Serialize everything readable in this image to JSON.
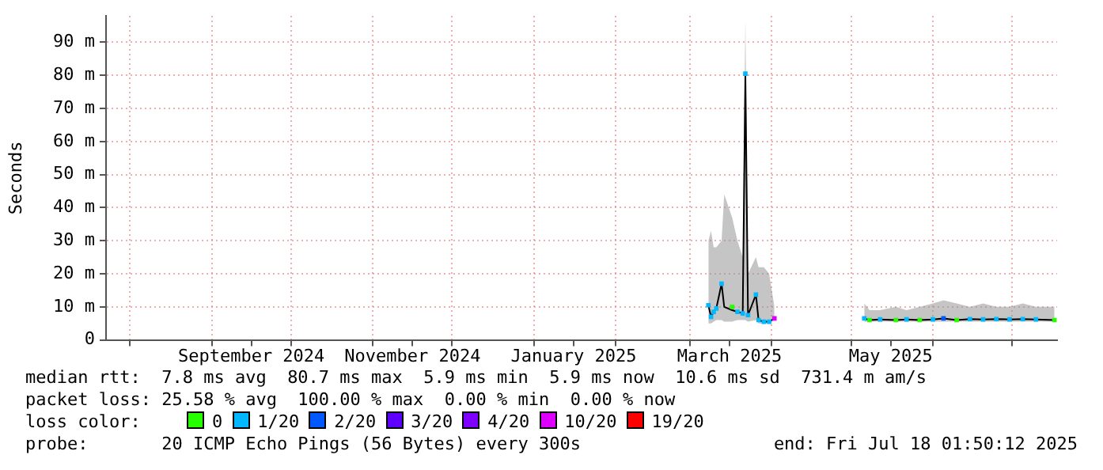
{
  "chart_data": {
    "type": "line",
    "ylabel": "Seconds",
    "legend_title": "loss color:",
    "legend": "bottom",
    "grid": true,
    "xlim": [
      "2024-07-23",
      "2025-07-18"
    ],
    "xticks": [
      {
        "value": "2024-08-01",
        "label": null
      },
      {
        "value": "2024-09-01",
        "label": null
      },
      {
        "value": "2024-09-16",
        "label": "September 2024"
      },
      {
        "value": "2024-10-01",
        "label": null
      },
      {
        "value": "2024-11-01",
        "label": null
      },
      {
        "value": "2024-11-16",
        "label": "November 2024"
      },
      {
        "value": "2024-12-01",
        "label": null
      },
      {
        "value": "2025-01-01",
        "label": null
      },
      {
        "value": "2025-01-16",
        "label": "January 2025"
      },
      {
        "value": "2025-02-01",
        "label": null
      },
      {
        "value": "2025-03-01",
        "label": null
      },
      {
        "value": "2025-03-16",
        "label": "March 2025"
      },
      {
        "value": "2025-04-01",
        "label": null
      },
      {
        "value": "2025-05-01",
        "label": null
      },
      {
        "value": "2025-05-16",
        "label": "May 2025"
      },
      {
        "value": "2025-06-01",
        "label": null
      },
      {
        "value": "2025-07-01",
        "label": null
      }
    ],
    "ylim": [
      0,
      98
    ],
    "yticks": [
      {
        "value": 0,
        "label": "0"
      },
      {
        "value": 10,
        "label": "10 m"
      },
      {
        "value": 20,
        "label": "20 m"
      },
      {
        "value": 30,
        "label": "30 m"
      },
      {
        "value": 40,
        "label": "40 m"
      },
      {
        "value": 50,
        "label": "50 m"
      },
      {
        "value": 60,
        "label": "60 m"
      },
      {
        "value": 70,
        "label": "70 m"
      },
      {
        "value": 80,
        "label": "80 m"
      },
      {
        "value": 90,
        "label": "90 m"
      }
    ],
    "annotations": [
      "median rtt:  7.8 ms avg  80.7 ms max  5.9 ms min  5.9 ms now  10.6 ms sd  731.4 m am/s",
      "packet loss: 25.58 % avg  100.00 % max  0.00 % min  0.00 % now",
      "probe:       20 ICMP Echo Pings (56 Bytes) every 300s",
      "end: Fri Jul 18 01:50:12 2025"
    ],
    "series": [
      {
        "color": "#000000",
        "x": [
          "2025-03-08",
          "2025-03-09",
          "2025-03-10",
          "2025-03-11",
          "2025-03-13",
          "2025-03-14",
          "2025-03-17",
          "2025-03-19",
          "2025-03-21",
          "2025-03-22",
          "2025-03-23",
          "2025-03-26",
          "2025-03-27",
          "2025-03-29",
          "2025-03-31",
          "2025-04-02",
          "2025-04-20",
          "2025-05-06",
          "2025-05-08",
          "2025-05-12",
          "2025-05-18",
          "2025-05-22",
          "2025-05-27",
          "2025-06-01",
          "2025-06-05",
          "2025-06-10",
          "2025-06-15",
          "2025-06-20",
          "2025-06-25",
          "2025-06-30",
          "2025-07-05",
          "2025-07-10",
          "2025-07-17"
        ],
        "values": [
          10.5,
          7,
          8.5,
          9.5,
          17,
          10,
          9,
          8.5,
          8,
          80.5,
          7.5,
          13.7,
          6,
          5.5,
          5.5,
          6.5,
          null,
          6.5,
          6,
          6.2,
          6,
          6.2,
          6,
          6.2,
          6.5,
          6,
          6.3,
          6.2,
          6.3,
          6.2,
          6.3,
          6.2,
          6
        ],
        "lower": [
          5,
          5,
          5.5,
          6,
          6,
          5.5,
          5.5,
          6,
          6,
          6,
          5.5,
          6,
          5,
          5,
          5,
          6,
          null,
          5.5,
          5.5,
          5.5,
          5.5,
          5.5,
          5.5,
          5.5,
          5.5,
          5.5,
          5.5,
          5.5,
          5.5,
          5.5,
          5.5,
          5.5,
          5.5
        ],
        "upper": [
          30,
          33,
          28,
          28,
          30,
          44,
          37,
          30,
          25,
          97,
          20,
          25,
          22,
          22,
          20,
          10,
          null,
          11,
          9,
          9,
          10,
          9,
          10,
          11,
          12,
          11,
          10,
          11,
          10,
          10,
          11,
          10,
          10
        ]
      },
      {
        "type": "scatter",
        "name": "0",
        "color": "#26ff00",
        "marker": "square",
        "x": [
          "2025-03-17",
          "2025-05-08",
          "2025-05-18",
          "2025-05-27",
          "2025-06-10",
          "2025-07-17"
        ],
        "values": [
          10,
          6,
          6,
          6,
          6,
          6
        ]
      },
      {
        "type": "scatter",
        "name": "1/20",
        "color": "#00b8ff",
        "marker": "square",
        "x": [
          "2025-03-08",
          "2025-03-09",
          "2025-03-10",
          "2025-03-11",
          "2025-03-13",
          "2025-03-19",
          "2025-03-21",
          "2025-03-22",
          "2025-03-23",
          "2025-03-26",
          "2025-03-27",
          "2025-03-29",
          "2025-03-31",
          "2025-05-06",
          "2025-05-12",
          "2025-05-22",
          "2025-06-01",
          "2025-06-15",
          "2025-06-20",
          "2025-06-25",
          "2025-06-30",
          "2025-07-05",
          "2025-07-10"
        ],
        "values": [
          10.5,
          7,
          8.5,
          9.5,
          17,
          8.5,
          8,
          80.5,
          7.5,
          13.7,
          6,
          5.5,
          5.5,
          6.5,
          6.2,
          6.2,
          6.2,
          6.3,
          6.2,
          6.3,
          6.2,
          6.3,
          6.2
        ]
      },
      {
        "type": "scatter",
        "name": "2/20",
        "color": "#0059ff",
        "marker": "square",
        "x": [
          "2025-06-05"
        ],
        "values": [
          6.5
        ]
      },
      {
        "type": "scatter",
        "name": "3/20",
        "color": "#5e00ff",
        "marker": "square"
      },
      {
        "type": "scatter",
        "name": "4/20",
        "color": "#7e00ff",
        "marker": "square"
      },
      {
        "type": "scatter",
        "name": "10/20",
        "color": "#dd00ff",
        "marker": "square",
        "x": [
          "2025-04-02"
        ],
        "values": [
          6.5
        ]
      },
      {
        "type": "scatter",
        "name": "19/20",
        "color": "#ff0000",
        "marker": "square"
      }
    ]
  }
}
